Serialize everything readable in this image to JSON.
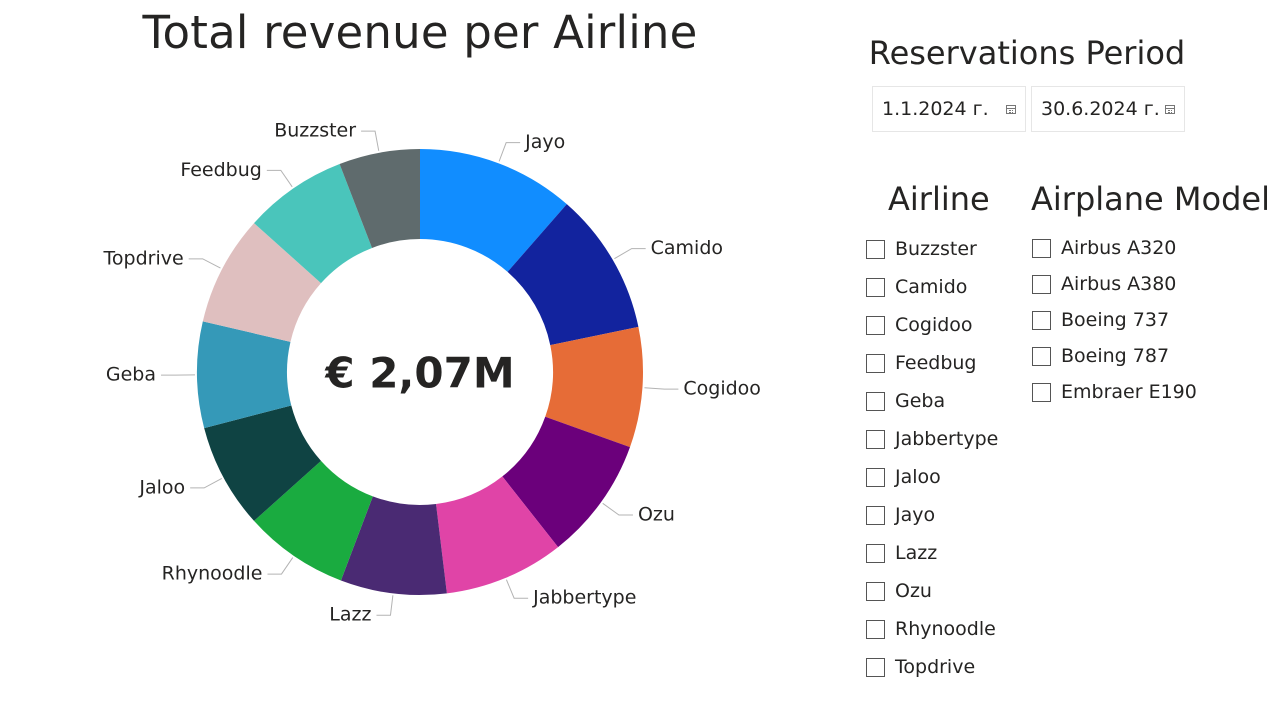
{
  "chart_data": {
    "type": "pie",
    "variant": "donut",
    "title": "Total revenue per Airline",
    "center_label": "€ 2,07M",
    "slices": [
      {
        "label": "Jayo",
        "value": 11.3,
        "color": "#118DFF"
      },
      {
        "label": "Camido",
        "value": 10.2,
        "color": "#12239E"
      },
      {
        "label": "Cogidoo",
        "value": 8.6,
        "color": "#E66C37"
      },
      {
        "label": "Ozu",
        "value": 8.8,
        "color": "#6B007B"
      },
      {
        "label": "Jabbertype",
        "value": 8.6,
        "color": "#E044A7"
      },
      {
        "label": "Lazz",
        "value": 7.6,
        "color": "#4A2A73"
      },
      {
        "label": "Rhynoodle",
        "value": 7.5,
        "color": "#1AAB40"
      },
      {
        "label": "Jaloo",
        "value": 7.5,
        "color": "#0F4343"
      },
      {
        "label": "Geba",
        "value": 7.6,
        "color": "#3599B8"
      },
      {
        "label": "Topdrive",
        "value": 7.9,
        "color": "#DFBFBF"
      },
      {
        "label": "Feedbug",
        "value": 7.4,
        "color": "#4AC5BB"
      },
      {
        "label": "Buzzster",
        "value": 5.8,
        "color": "#5F6B6D"
      }
    ],
    "legend": "labels-outside"
  },
  "period": {
    "title": "Reservations Period",
    "start": "1.1.2024 г.",
    "end": "30.6.2024 г.",
    "icon": "calendar-icon"
  },
  "airline_slicer": {
    "title": "Airline",
    "items": [
      "Buzzster",
      "Camido",
      "Cogidoo",
      "Feedbug",
      "Geba",
      "Jabbertype",
      "Jaloo",
      "Jayo",
      "Lazz",
      "Ozu",
      "Rhynoodle",
      "Topdrive"
    ]
  },
  "model_slicer": {
    "title": "Airplane Model",
    "items": [
      "Airbus A320",
      "Airbus A380",
      "Boeing 737",
      "Boeing 787",
      "Embraer E190"
    ]
  }
}
